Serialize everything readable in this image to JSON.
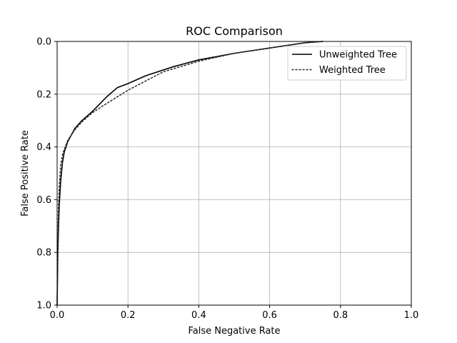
{
  "chart_data": {
    "type": "line",
    "title": "ROC Comparison",
    "xlabel": "False Negative Rate",
    "ylabel": "False Positive Rate",
    "xlim": [
      0.0,
      1.0
    ],
    "ylim": [
      1.0,
      0.0
    ],
    "y_inverted": true,
    "grid": true,
    "legend_position": "top-right",
    "x_ticks": [
      "0.0",
      "0.2",
      "0.4",
      "0.6",
      "0.8",
      "1.0"
    ],
    "y_ticks": [
      "0.0",
      "0.2",
      "0.4",
      "0.6",
      "0.8",
      "1.0"
    ],
    "series": [
      {
        "name": "Unweighted Tree",
        "style": "solid",
        "color": "#000000",
        "x": [
          0.0,
          0.002,
          0.004,
          0.006,
          0.01,
          0.015,
          0.02,
          0.03,
          0.05,
          0.07,
          0.1,
          0.14,
          0.17,
          0.2,
          0.25,
          0.33,
          0.4,
          0.5,
          0.6,
          0.7,
          0.75
        ],
        "y": [
          1.0,
          0.8,
          0.7,
          0.62,
          0.53,
          0.46,
          0.42,
          0.38,
          0.33,
          0.3,
          0.265,
          0.21,
          0.175,
          0.16,
          0.13,
          0.095,
          0.07,
          0.045,
          0.025,
          0.005,
          0.0
        ]
      },
      {
        "name": "Weighted Tree",
        "style": "dotted",
        "color": "#333333",
        "x": [
          0.0,
          0.002,
          0.004,
          0.006,
          0.01,
          0.015,
          0.02,
          0.03,
          0.05,
          0.07,
          0.1,
          0.14,
          0.17,
          0.2,
          0.25,
          0.3,
          0.4,
          0.5,
          0.6,
          0.7,
          0.75
        ],
        "y": [
          1.0,
          0.75,
          0.62,
          0.55,
          0.47,
          0.43,
          0.41,
          0.375,
          0.335,
          0.305,
          0.27,
          0.235,
          0.21,
          0.185,
          0.15,
          0.115,
          0.075,
          0.045,
          0.025,
          0.005,
          0.0
        ]
      }
    ]
  }
}
